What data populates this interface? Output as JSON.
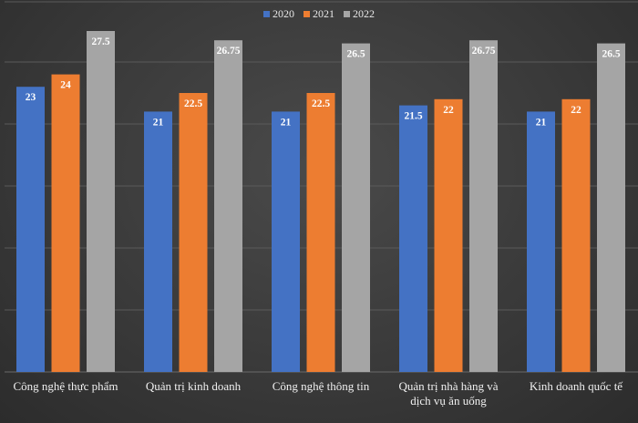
{
  "chart_data": {
    "type": "bar",
    "title": "",
    "xlabel": "",
    "ylabel": "",
    "categories": [
      "Công nghệ thực phẩm",
      "Quản trị kinh doanh",
      "Công nghệ thông tin",
      "Quản trị nhà hàng và dịch vụ ăn uống",
      "Kinh doanh quốc tế"
    ],
    "series": [
      {
        "name": "2020",
        "color": "#4472c4",
        "values": [
          23,
          21,
          21,
          21.5,
          21
        ]
      },
      {
        "name": "2021",
        "color": "#ed7d31",
        "values": [
          24,
          22.5,
          22.5,
          22,
          22
        ]
      },
      {
        "name": "2022",
        "color": "#a5a5a5",
        "values": [
          27.5,
          26.75,
          26.5,
          26.75,
          26.5
        ]
      }
    ],
    "ylim": [
      0,
      28
    ],
    "legend_position": "top-center",
    "grid": true,
    "data_labels": true
  }
}
